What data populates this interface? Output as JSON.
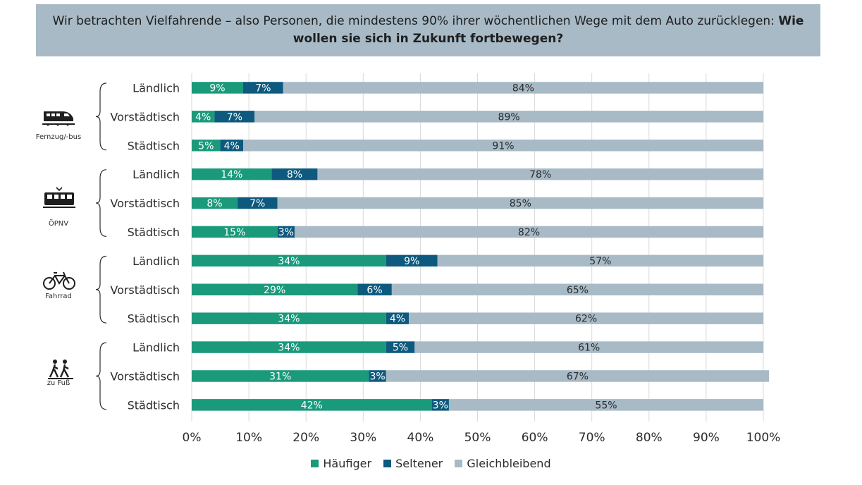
{
  "header": {
    "text_regular": "Wir betrachten Vielfahrende – also Personen, die mindestens 90% ihrer wöchentlichen Wege mit dem Auto zurücklegen: ",
    "text_bold": "Wie wollen sie sich in Zukunft fortbewegen?"
  },
  "colors": {
    "haeufiger": "#1a9a7b",
    "seltener": "#0e5a7e",
    "gleich": "#a7bac6",
    "grid": "#d9d9d9"
  },
  "groups": [
    {
      "label": "Fernzug/-bus",
      "icon": "train-icon"
    },
    {
      "label": "ÖPNV",
      "icon": "tram-icon"
    },
    {
      "label": "Fahrrad",
      "icon": "bicycle-icon"
    },
    {
      "label": "zu Fuß",
      "icon": "pedestrians-icon"
    }
  ],
  "legend": [
    "Häufiger",
    "Seltener",
    "Gleichbleibend"
  ],
  "chart_data": {
    "type": "bar",
    "orientation": "horizontal",
    "stacked": true,
    "categories": [
      "Ländlich",
      "Vorstädtisch",
      "Städtisch",
      "Ländlich",
      "Vorstädtisch",
      "Städtisch",
      "Ländlich",
      "Vorstädtisch",
      "Städtisch",
      "Ländlich",
      "Vorstädtisch",
      "Städtisch"
    ],
    "series": [
      {
        "name": "Häufiger",
        "values": [
          9,
          4,
          5,
          14,
          8,
          15,
          34,
          29,
          34,
          34,
          31,
          42
        ]
      },
      {
        "name": "Seltener",
        "values": [
          7,
          7,
          4,
          8,
          7,
          3,
          9,
          6,
          4,
          5,
          3,
          3
        ]
      },
      {
        "name": "Gleichbleibend",
        "values": [
          84,
          89,
          91,
          78,
          85,
          82,
          57,
          65,
          62,
          61,
          67,
          55
        ]
      }
    ],
    "xticks": [
      "0%",
      "10%",
      "20%",
      "30%",
      "40%",
      "50%",
      "60%",
      "70%",
      "80%",
      "90%",
      "100%"
    ],
    "xlim": [
      0,
      100
    ],
    "grid": "vertical",
    "legend_position": "bottom"
  }
}
